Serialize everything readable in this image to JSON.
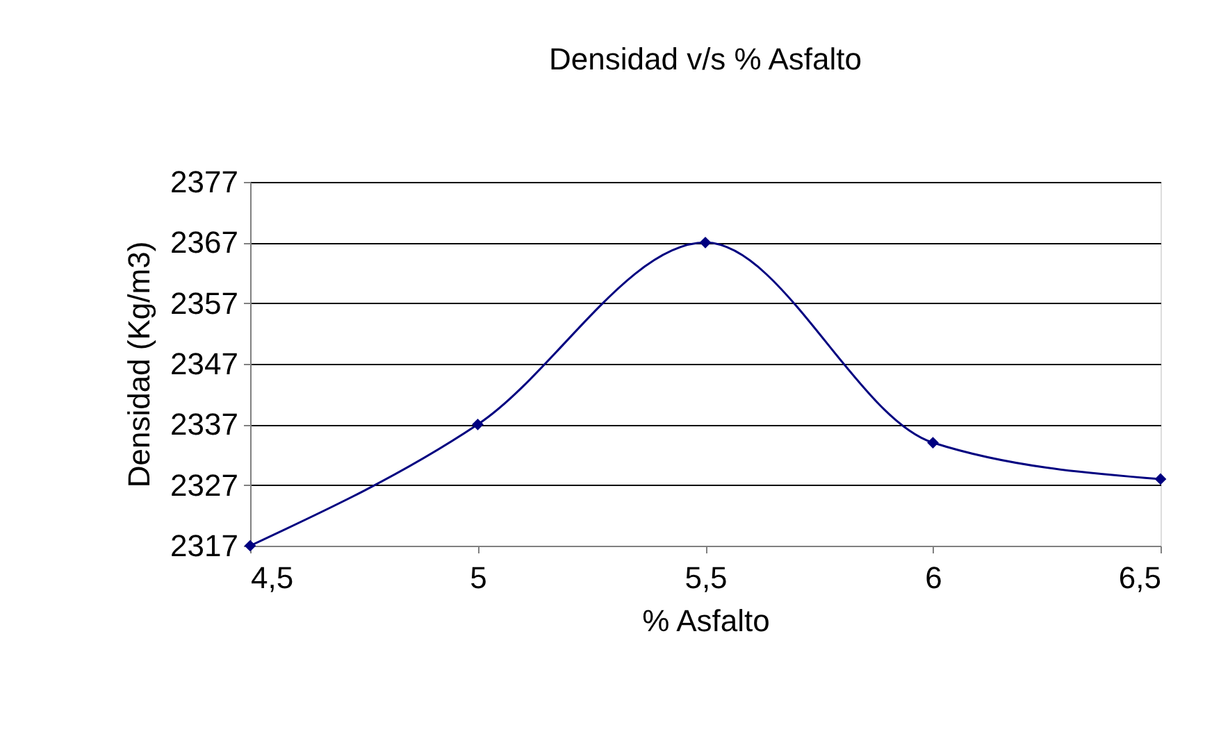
{
  "chart_data": {
    "type": "line",
    "title": "Densidad v/s % Asfalto",
    "xlabel": "% Asfalto",
    "ylabel": "Densidad (Kg/m3)",
    "x": [
      4.5,
      5,
      5.5,
      6,
      6.5
    ],
    "series": [
      {
        "color": "#000080",
        "values": [
          2317,
          2337,
          2367,
          2334,
          2328
        ]
      }
    ],
    "xlim": [
      4.5,
      6.5
    ],
    "xticks": [
      {
        "value": 4.5,
        "label": "4,5"
      },
      5,
      {
        "value": 5.5,
        "label": "5,5"
      },
      6,
      {
        "value": 6.5,
        "label": "6,5"
      }
    ],
    "ylim": [
      2317,
      2377
    ],
    "yticks": [
      2317,
      2327,
      2337,
      2347,
      2357,
      2367,
      2377
    ],
    "grid": "y",
    "marker": "diamond",
    "line_style": "solid"
  }
}
